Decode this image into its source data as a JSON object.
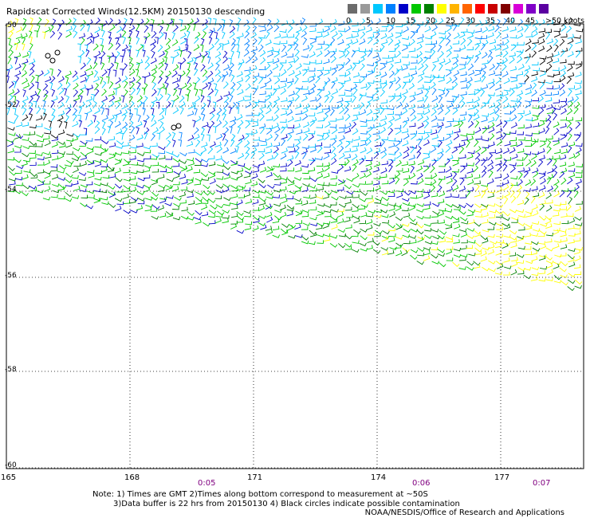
{
  "title": "Rapidscat Corrected Winds(12.5KM) 20150130 descending",
  "colorbar": {
    "colors": [
      "#6b6b6b",
      "#9a9a9a",
      "#00c8ff",
      "#0080ff",
      "#0000c8",
      "#00c800",
      "#008000",
      "#ffff00",
      "#ffb400",
      "#ff6400",
      "#ff0000",
      "#c80000",
      "#800000",
      "#d800d8",
      "#8000c8",
      "#5a00a0"
    ],
    "labels": [
      "0",
      "5",
      "10",
      "15",
      "20",
      "25",
      "30",
      "35",
      "40",
      "45",
      ">50 knots"
    ]
  },
  "axes": {
    "lat_ticks": [
      "-50",
      "-52",
      "-54",
      "-56",
      "-58",
      "-60"
    ],
    "lon_ticks": [
      "165",
      "168",
      "171",
      "174",
      "177"
    ]
  },
  "times": [
    "0:05",
    "0:06",
    "0:07"
  ],
  "notes": {
    "line1": "Note: 1) Times are GMT 2)Times along bottom correspond to measurement at ~50S",
    "line2": "3)Data buffer is 22 hrs from 20150130 4) Black circles indicate possible contamination"
  },
  "credit": "NOAA/NESDIS/Office of Research and Applications"
}
